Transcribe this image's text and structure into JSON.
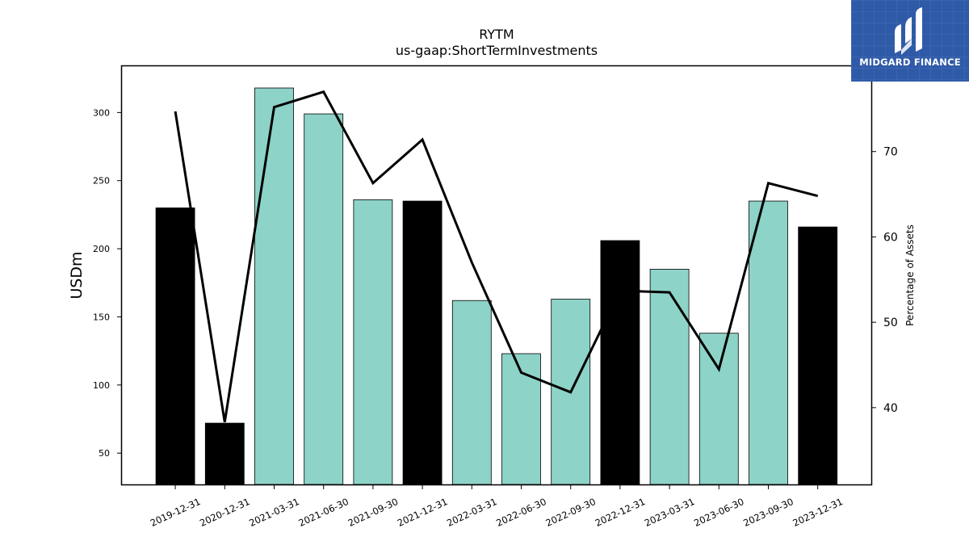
{
  "chart_data": {
    "type": "bar",
    "title": "RYTM",
    "subtitle": "us-gaap:ShortTermInvestments",
    "ylabel": "USDm",
    "y2label": "Percentage of Assets",
    "categories": [
      "2019-12-31",
      "2020-12-31",
      "2021-03-31",
      "2021-06-30",
      "2021-09-30",
      "2021-12-31",
      "2022-03-31",
      "2022-06-30",
      "2022-09-30",
      "2022-12-31",
      "2023-03-31",
      "2023-06-30",
      "2023-09-30",
      "2023-12-31"
    ],
    "series": [
      {
        "type": "bar",
        "axis": "left",
        "values": [
          230,
          72,
          318,
          299,
          236,
          235,
          162,
          123,
          163,
          206,
          185,
          138,
          235,
          216
        ],
        "colors": [
          "#000000",
          "#000000",
          "#8dd3c7",
          "#8dd3c7",
          "#8dd3c7",
          "#000000",
          "#8dd3c7",
          "#8dd3c7",
          "#8dd3c7",
          "#000000",
          "#8dd3c7",
          "#8dd3c7",
          "#8dd3c7",
          "#000000"
        ]
      },
      {
        "type": "line",
        "axis": "right",
        "color": "#000000",
        "values": [
          74.7,
          38.3,
          75.2,
          77.0,
          66.3,
          71.4,
          57.0,
          44.1,
          41.8,
          53.7,
          53.5,
          44.5,
          66.3,
          64.8
        ]
      }
    ],
    "ylim": [
      27,
      334
    ],
    "y2lim": [
      31,
      80
    ],
    "yticks": [
      50,
      100,
      150,
      200,
      250,
      300
    ],
    "y2ticks": [
      40,
      50,
      60,
      70
    ],
    "grid": false,
    "legend": "none"
  },
  "branding": {
    "logo_text": "MIDGARD FINANCE",
    "logo_color": "#2f5aa8"
  }
}
